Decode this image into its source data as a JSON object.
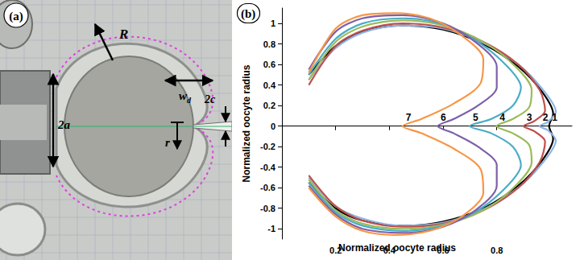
{
  "panel_a": {
    "title": "(a)",
    "annotations": {
      "radius": "R",
      "holding_width": "2a",
      "indentation_depth": {
        "text": "w",
        "subscript": "d"
      },
      "needle_width": "2c",
      "dimple_radius": "r"
    }
  },
  "chart_data": {
    "type": "line",
    "title": "(b)",
    "xlabel": "Normalized oocyte radius",
    "ylabel": "Normalized oocyte radius",
    "xlim": [
      0,
      1.08
    ],
    "ylim": [
      -1.1,
      1.15
    ],
    "xticks": [
      0.2,
      0.4,
      0.6,
      0.8
    ],
    "yticks": [
      -1,
      -0.8,
      -0.6,
      -0.4,
      -0.2,
      0,
      0.2,
      0.4,
      0.6,
      0.8,
      1
    ],
    "grid": false,
    "series": [
      {
        "name": "1",
        "color": "#000000",
        "x": [
          0.1,
          0.2,
          0.3,
          0.45,
          0.6,
          0.75,
          0.88,
          0.97,
          1.01,
          0.995,
          1.01,
          0.97,
          0.88,
          0.75,
          0.6,
          0.45,
          0.3,
          0.2,
          0.1
        ],
        "values": [
          0.5,
          0.78,
          0.92,
          0.98,
          0.94,
          0.8,
          0.58,
          0.33,
          0.12,
          0,
          -0.12,
          -0.33,
          -0.58,
          -0.8,
          -0.93,
          -0.97,
          -0.92,
          -0.8,
          -0.55
        ]
      },
      {
        "name": "2",
        "color": "#8eb4e3",
        "x": [
          0.1,
          0.2,
          0.3,
          0.45,
          0.6,
          0.75,
          0.88,
          0.97,
          1.02,
          0.99,
          0.96,
          0.99,
          1.02,
          0.97,
          0.88,
          0.75,
          0.6,
          0.45,
          0.3,
          0.2,
          0.1
        ],
        "values": [
          0.45,
          0.76,
          0.91,
          0.98,
          0.95,
          0.81,
          0.6,
          0.36,
          0.14,
          0.04,
          0,
          -0.04,
          -0.14,
          -0.36,
          -0.6,
          -0.81,
          -0.94,
          -0.97,
          -0.9,
          -0.78,
          -0.5
        ]
      },
      {
        "name": "3",
        "color": "#c0504d",
        "x": [
          0.1,
          0.2,
          0.3,
          0.45,
          0.6,
          0.75,
          0.88,
          0.96,
          0.98,
          0.94,
          0.9,
          0.94,
          0.98,
          0.96,
          0.88,
          0.75,
          0.6,
          0.45,
          0.3,
          0.2,
          0.1
        ],
        "values": [
          0.4,
          0.78,
          0.93,
          1.0,
          0.96,
          0.82,
          0.6,
          0.35,
          0.15,
          0.05,
          0,
          -0.05,
          -0.15,
          -0.35,
          -0.6,
          -0.82,
          -0.95,
          -0.98,
          -0.92,
          -0.78,
          -0.48
        ]
      },
      {
        "name": "4",
        "color": "#9bbb59",
        "x": [
          0.1,
          0.2,
          0.3,
          0.45,
          0.6,
          0.75,
          0.87,
          0.93,
          0.92,
          0.86,
          0.8,
          0.86,
          0.92,
          0.93,
          0.87,
          0.75,
          0.6,
          0.45,
          0.3,
          0.2,
          0.1
        ],
        "values": [
          0.45,
          0.82,
          0.97,
          1.03,
          0.98,
          0.82,
          0.58,
          0.35,
          0.18,
          0.07,
          0,
          -0.07,
          -0.18,
          -0.35,
          -0.58,
          -0.82,
          -0.96,
          -1.0,
          -0.95,
          -0.82,
          -0.52
        ]
      },
      {
        "name": "5",
        "color": "#4bacc6",
        "x": [
          0.1,
          0.2,
          0.3,
          0.45,
          0.6,
          0.73,
          0.84,
          0.89,
          0.86,
          0.78,
          0.7,
          0.78,
          0.86,
          0.89,
          0.84,
          0.73,
          0.6,
          0.45,
          0.3,
          0.2,
          0.1
        ],
        "values": [
          0.5,
          0.85,
          1.0,
          1.05,
          0.99,
          0.82,
          0.58,
          0.38,
          0.2,
          0.07,
          0,
          -0.07,
          -0.2,
          -0.38,
          -0.58,
          -0.82,
          -0.97,
          -1.02,
          -0.97,
          -0.84,
          -0.55
        ]
      },
      {
        "name": "6",
        "color": "#7f5fa8",
        "x": [
          0.1,
          0.2,
          0.3,
          0.45,
          0.6,
          0.72,
          0.8,
          0.8,
          0.73,
          0.64,
          0.58,
          0.64,
          0.73,
          0.8,
          0.8,
          0.72,
          0.6,
          0.45,
          0.3,
          0.2,
          0.1
        ],
        "values": [
          0.55,
          0.92,
          1.05,
          1.08,
          1.0,
          0.82,
          0.58,
          0.38,
          0.2,
          0.07,
          0,
          -0.07,
          -0.2,
          -0.38,
          -0.58,
          -0.82,
          -0.98,
          -1.04,
          -1.0,
          -0.86,
          -0.58
        ]
      },
      {
        "name": "7",
        "color": "#f79646",
        "x": [
          0.1,
          0.2,
          0.3,
          0.42,
          0.55,
          0.67,
          0.75,
          0.74,
          0.64,
          0.52,
          0.45,
          0.52,
          0.64,
          0.74,
          0.75,
          0.67,
          0.55,
          0.42,
          0.3,
          0.2,
          0.1
        ],
        "values": [
          0.52,
          0.95,
          1.08,
          1.1,
          1.05,
          0.88,
          0.65,
          0.42,
          0.22,
          0.07,
          0,
          -0.07,
          -0.22,
          -0.42,
          -0.65,
          -0.88,
          -1.02,
          -1.06,
          -1.02,
          -0.88,
          -0.6
        ]
      }
    ]
  }
}
